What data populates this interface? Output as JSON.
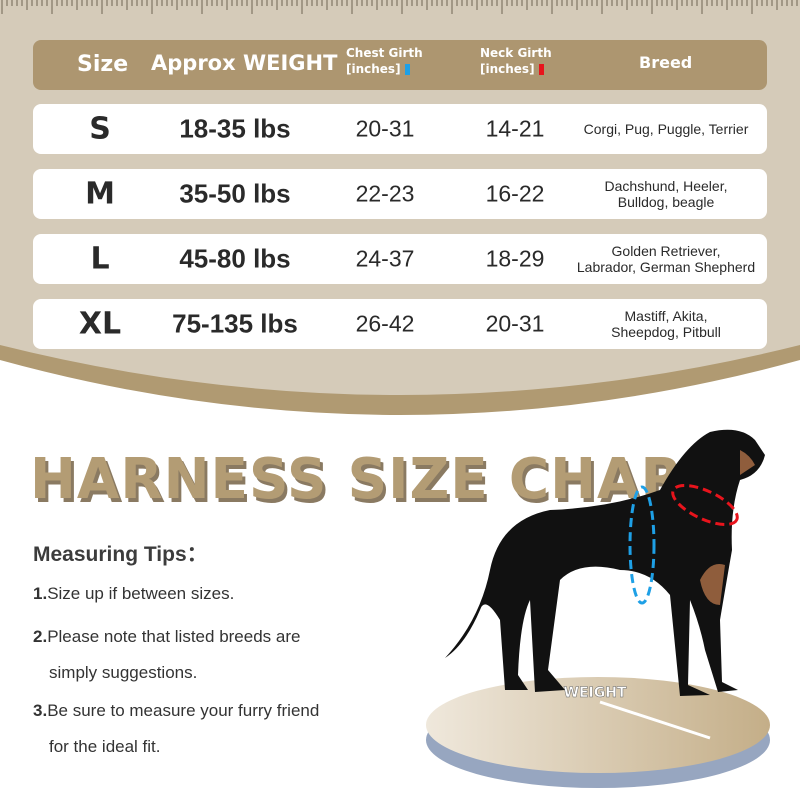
{
  "header": {
    "size": "Size",
    "weight": "Approx WEIGHT",
    "chest_line1": "Chest Girth",
    "chest_line2": "[inches]",
    "neck_line1": "Neck Girth",
    "neck_line2": "[inches]",
    "breed": "Breed"
  },
  "colors": {
    "chest": "#1ea0e6",
    "neck": "#e8141c",
    "accent": "#ad9670",
    "background": "#d5cbb9"
  },
  "rows": [
    {
      "size": "S",
      "weight": "18-35 lbs",
      "chest": "20-31",
      "neck": "14-21",
      "breed1": "Corgi, Pug, Puggle, Terrier",
      "breed2": ""
    },
    {
      "size": "M",
      "weight": "35-50 lbs",
      "chest": "22-23",
      "neck": "16-22",
      "breed1": "Dachshund, Heeler,",
      "breed2": "Bulldog, beagle"
    },
    {
      "size": "L",
      "weight": "45-80 lbs",
      "chest": "24-37",
      "neck": "18-29",
      "breed1": "Golden Retriever,",
      "breed2": "Labrador, German Shepherd"
    },
    {
      "size": "XL",
      "weight": "75-135 lbs",
      "chest": "26-42",
      "neck": "20-31",
      "breed1": "Mastiff, Akita,",
      "breed2": "Sheepdog,  Pitbull"
    }
  ],
  "title": "HARNESS SIZE CHART",
  "tips": {
    "heading": "Measuring Tips：",
    "items": [
      {
        "num": "1.",
        "line1": "Size up if between sizes.",
        "line2": ""
      },
      {
        "num": "2.",
        "line1": "Please note that listed breeds are",
        "line2": "simply suggestions."
      },
      {
        "num": "3.",
        "line1": "Be sure to measure your furry friend",
        "line2": "for the ideal fit."
      }
    ]
  },
  "scale_label": "WEIGHT"
}
